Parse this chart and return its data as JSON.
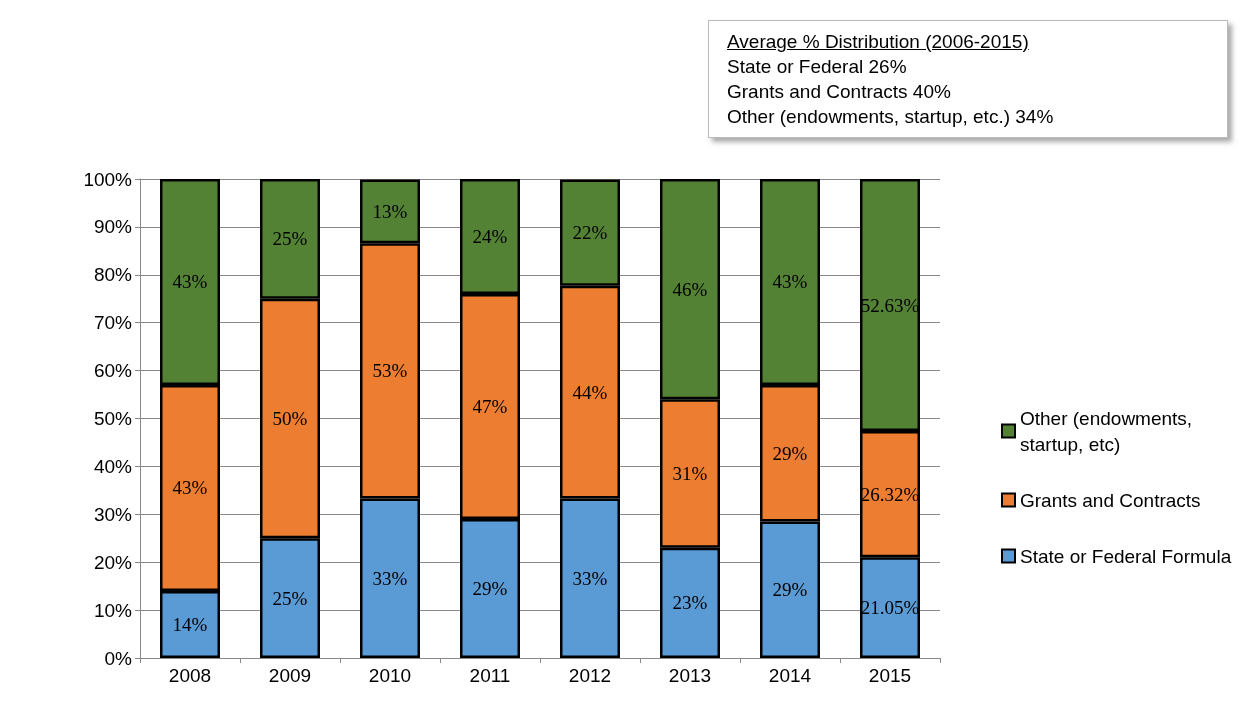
{
  "chart_data": {
    "type": "bar",
    "stacked": true,
    "categories": [
      "2008",
      "2009",
      "2010",
      "2011",
      "2012",
      "2013",
      "2014",
      "2015"
    ],
    "series": [
      {
        "name": "State or Federal Formula",
        "color": "#5b9bd5",
        "values": [
          14,
          25,
          33.3,
          29,
          33.3,
          23,
          28.5,
          21.05
        ],
        "value_labels": [
          "14%",
          "25%",
          "33%",
          "29%",
          "33%",
          "23%",
          "29%",
          "21.05%"
        ]
      },
      {
        "name": "Grants and Contracts",
        "color": "#ed7d31",
        "values": [
          43,
          50,
          53.3,
          47,
          44.4,
          31,
          28.5,
          26.32
        ],
        "value_labels": [
          "43%",
          "50%",
          "53%",
          "47%",
          "44%",
          "31%",
          "29%",
          "26.32%"
        ]
      },
      {
        "name": "Other (endowments, startup, etc)",
        "color": "#548235",
        "values": [
          43,
          25,
          13.3,
          24,
          22.2,
          46,
          43,
          52.63
        ],
        "value_labels": [
          "43%",
          "25%",
          "13%",
          "24%",
          "22%",
          "46%",
          "43%",
          "52.63%"
        ]
      }
    ],
    "ylim": [
      0,
      100
    ],
    "yticks": [
      {
        "value": 0,
        "label": "0%"
      },
      {
        "value": 10,
        "label": "10%"
      },
      {
        "value": 20,
        "label": "20%"
      },
      {
        "value": 30,
        "label": "30%"
      },
      {
        "value": 40,
        "label": "40%"
      },
      {
        "value": 50,
        "label": "50%"
      },
      {
        "value": 60,
        "label": "60%"
      },
      {
        "value": 70,
        "label": "70%"
      },
      {
        "value": 80,
        "label": "80%"
      },
      {
        "value": 90,
        "label": "90%"
      },
      {
        "value": 100,
        "label": "100%"
      }
    ],
    "grid": "y",
    "legend": "right",
    "annotations": [
      "Average % Distribution (2006-2015)",
      "State or Federal 26%",
      "Grants and Contracts 40%",
      "Other (endowments, startup, etc.) 34%"
    ]
  }
}
